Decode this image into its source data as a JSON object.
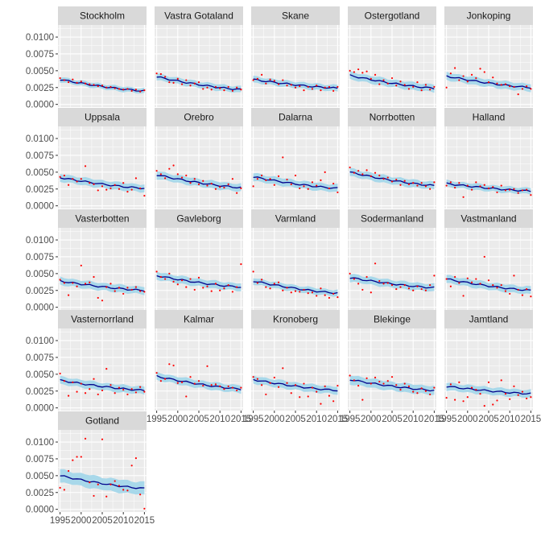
{
  "chart_data": {
    "type": "scatter",
    "title": "",
    "xlabel": "",
    "ylabel": "",
    "xlim": [
      1994.5,
      2015.5
    ],
    "ylim": [
      -0.0004,
      0.0118
    ],
    "xticks": [
      1995,
      2000,
      2005,
      2010,
      2015
    ],
    "xtick_labels": [
      "1995",
      "2000",
      "2005",
      "2010",
      "2015"
    ],
    "yticks": [
      0,
      0.0025,
      0.005,
      0.0075,
      0.01
    ],
    "ytick_labels": [
      "0.0000",
      "0.0025",
      "0.0050",
      "0.0075",
      "0.0100"
    ],
    "colors": {
      "panel": "#ebebeb",
      "grid": "#ffffff",
      "strip": "#d9d9d9",
      "ribbon": "#a8d8ea",
      "line": "#00008b",
      "points": "#ff0000"
    },
    "panels": [
      {
        "name": "Stockholm",
        "fit": [
          0.0037,
          0.002
        ],
        "band": 0.0004,
        "points": [
          0.0039,
          0.0036,
          0.0033,
          0.0037,
          0.0032,
          0.0034,
          0.0031,
          0.003,
          0.0029,
          0.0027,
          0.0028,
          0.0025,
          0.0026,
          0.0024,
          0.0023,
          0.0022,
          0.0023,
          0.002,
          0.0022,
          0.0019,
          0.0021
        ]
      },
      {
        "name": "Vastra Gotaland",
        "fit": [
          0.0041,
          0.0022
        ],
        "band": 0.0005,
        "points": [
          0.0046,
          0.0045,
          0.0041,
          0.0033,
          0.0032,
          0.0038,
          0.003,
          0.0036,
          0.0028,
          0.0031,
          0.0033,
          0.0023,
          0.0025,
          0.0022,
          0.0026,
          0.0024,
          0.0021,
          0.0026,
          0.002,
          0.0025,
          0.0022
        ]
      },
      {
        "name": "Skane",
        "fit": [
          0.0037,
          0.0024
        ],
        "band": 0.0005,
        "points": [
          0.0036,
          0.0038,
          0.0044,
          0.0031,
          0.0037,
          0.0035,
          0.003,
          0.0036,
          0.0028,
          0.0029,
          0.0025,
          0.0027,
          0.0021,
          0.0026,
          0.0023,
          0.0028,
          0.0021,
          0.0025,
          0.0026,
          0.002,
          0.0026
        ]
      },
      {
        "name": "Ostergotland",
        "fit": [
          0.0043,
          0.0024
        ],
        "band": 0.0006,
        "points": [
          0.005,
          0.0048,
          0.0052,
          0.0047,
          0.0049,
          0.0038,
          0.0044,
          0.003,
          0.0036,
          0.0031,
          0.0039,
          0.0028,
          0.0034,
          0.0029,
          0.0023,
          0.0026,
          0.0033,
          0.0021,
          0.0029,
          0.0022,
          0.0026
        ]
      },
      {
        "name": "Jonkoping",
        "fit": [
          0.0042,
          0.0025
        ],
        "band": 0.0006,
        "points": [
          0.0025,
          0.0046,
          0.0054,
          0.0036,
          0.0042,
          0.0034,
          0.0044,
          0.0039,
          0.0053,
          0.0048,
          0.0033,
          0.004,
          0.0031,
          0.0029,
          0.003,
          0.0027,
          0.0026,
          0.0015,
          0.0023,
          0.0027,
          0.0023
        ]
      },
      {
        "name": "Uppsala",
        "fit": [
          0.0042,
          0.0026
        ],
        "band": 0.0006,
        "points": [
          0.0043,
          0.0045,
          0.0031,
          0.004,
          0.0036,
          0.004,
          0.0059,
          0.0034,
          0.0032,
          0.0023,
          0.0029,
          0.0024,
          0.0026,
          0.0031,
          0.0025,
          0.0034,
          0.0021,
          0.0024,
          0.0041,
          0.0026,
          0.0015
        ]
      },
      {
        "name": "Orebro",
        "fit": [
          0.0046,
          0.0027
        ],
        "band": 0.0006,
        "points": [
          0.0052,
          0.0047,
          0.0041,
          0.0055,
          0.006,
          0.0047,
          0.0042,
          0.0045,
          0.0034,
          0.004,
          0.0032,
          0.0037,
          0.003,
          0.0033,
          0.0025,
          0.0028,
          0.0027,
          0.0032,
          0.004,
          0.0019,
          0.0026
        ]
      },
      {
        "name": "Dalarna",
        "fit": [
          0.0043,
          0.0026
        ],
        "band": 0.0006,
        "points": [
          0.0029,
          0.004,
          0.0045,
          0.0038,
          0.004,
          0.0031,
          0.0044,
          0.0072,
          0.0039,
          0.0032,
          0.0045,
          0.0026,
          0.0029,
          0.0025,
          0.0035,
          0.003,
          0.0038,
          0.005,
          0.0026,
          0.0033,
          0.002
        ]
      },
      {
        "name": "Norrbotten",
        "fit": [
          0.005,
          0.003
        ],
        "band": 0.0006,
        "points": [
          0.0057,
          0.0049,
          0.0052,
          0.0047,
          0.0053,
          0.0044,
          0.0049,
          0.0045,
          0.004,
          0.0042,
          0.0036,
          0.0039,
          0.0031,
          0.0037,
          0.0032,
          0.0034,
          0.003,
          0.0034,
          0.0029,
          0.0025,
          0.0035
        ]
      },
      {
        "name": "Halland",
        "fit": [
          0.0033,
          0.0022
        ],
        "band": 0.0005,
        "points": [
          0.003,
          0.0035,
          0.0027,
          0.0034,
          0.0013,
          0.003,
          0.0024,
          0.0035,
          0.0029,
          0.0031,
          0.0026,
          0.0028,
          0.002,
          0.003,
          0.0023,
          0.0024,
          0.0025,
          0.0019,
          0.0023,
          0.0024,
          0.0016
        ]
      },
      {
        "name": "Vasterbotten",
        "fit": [
          0.0039,
          0.0025
        ],
        "band": 0.0006,
        "points": [
          0.0041,
          0.0036,
          0.0018,
          0.0036,
          0.0031,
          0.0062,
          0.0035,
          0.0037,
          0.0045,
          0.0014,
          0.001,
          0.003,
          0.0035,
          0.0024,
          0.0029,
          0.002,
          0.0029,
          0.0026,
          0.003,
          0.0024,
          0.0023
        ]
      },
      {
        "name": "Gavleborg",
        "fit": [
          0.0047,
          0.003
        ],
        "band": 0.0006,
        "points": [
          0.0053,
          0.0045,
          0.0042,
          0.005,
          0.0038,
          0.0034,
          0.004,
          0.003,
          0.0042,
          0.0026,
          0.0044,
          0.0029,
          0.0031,
          0.0024,
          0.0035,
          0.0025,
          0.0028,
          0.0033,
          0.0023,
          0.003,
          0.0064
        ]
      },
      {
        "name": "Varmland",
        "fit": [
          0.0039,
          0.0021
        ],
        "band": 0.0005,
        "points": [
          0.0053,
          0.0036,
          0.0041,
          0.003,
          0.0028,
          0.0035,
          0.0037,
          0.0025,
          0.0029,
          0.0022,
          0.0024,
          0.0023,
          0.0026,
          0.0021,
          0.0022,
          0.0017,
          0.0028,
          0.0018,
          0.0014,
          0.002,
          0.0015
        ]
      },
      {
        "name": "Sodermanland",
        "fit": [
          0.0044,
          0.0029
        ],
        "band": 0.0006,
        "points": [
          0.005,
          0.0042,
          0.0035,
          0.0026,
          0.0045,
          0.0022,
          0.0065,
          0.0039,
          0.0035,
          0.0036,
          0.0033,
          0.0027,
          0.003,
          0.0033,
          0.0028,
          0.0025,
          0.0031,
          0.0027,
          0.0025,
          0.0033,
          0.0047
        ]
      },
      {
        "name": "Vastmanland",
        "fit": [
          0.0042,
          0.0025
        ],
        "band": 0.0006,
        "points": [
          0.0042,
          0.0031,
          0.0045,
          0.0036,
          0.0017,
          0.0043,
          0.0037,
          0.0042,
          0.0035,
          0.0075,
          0.004,
          0.0033,
          0.0029,
          0.0033,
          0.0024,
          0.002,
          0.0047,
          0.0026,
          0.0018,
          0.0027,
          0.0016
        ]
      },
      {
        "name": "Vasternorrland",
        "fit": [
          0.0041,
          0.0026
        ],
        "band": 0.0006,
        "points": [
          0.0051,
          0.004,
          0.0018,
          0.0038,
          0.0024,
          0.0036,
          0.0022,
          0.0028,
          0.0043,
          0.002,
          0.0026,
          0.0058,
          0.0034,
          0.0022,
          0.003,
          0.0027,
          0.002,
          0.0028,
          0.0023,
          0.0031,
          0.0024
        ]
      },
      {
        "name": "Kalmar",
        "fit": [
          0.0047,
          0.0028
        ],
        "band": 0.0006,
        "points": [
          0.0052,
          0.004,
          0.0043,
          0.0065,
          0.0063,
          0.0037,
          0.0038,
          0.0017,
          0.0046,
          0.0036,
          0.004,
          0.0033,
          0.0062,
          0.0034,
          0.0035,
          0.0032,
          0.0028,
          0.0032,
          0.003,
          0.0026,
          0.003
        ]
      },
      {
        "name": "Kronoberg",
        "fit": [
          0.0042,
          0.0026
        ],
        "band": 0.0006,
        "points": [
          0.0046,
          0.0043,
          0.0034,
          0.002,
          0.0037,
          0.0045,
          0.0031,
          0.0059,
          0.0037,
          0.0022,
          0.0034,
          0.0016,
          0.0036,
          0.0017,
          0.003,
          0.0024,
          0.0006,
          0.0032,
          0.0018,
          0.001,
          0.0033
        ]
      },
      {
        "name": "Blekinge",
        "fit": [
          0.0042,
          0.0026
        ],
        "band": 0.0007,
        "points": [
          0.0048,
          0.0041,
          0.0033,
          0.0012,
          0.0044,
          0.0036,
          0.0045,
          0.0039,
          0.0036,
          0.004,
          0.0046,
          0.0034,
          0.0027,
          0.0036,
          0.0032,
          0.0024,
          0.0022,
          0.0029,
          0.0025,
          0.002,
          0.003
        ]
      },
      {
        "name": "Jamtland",
        "fit": [
          0.0032,
          0.0021
        ],
        "band": 0.0006,
        "points": [
          0.0015,
          0.0035,
          0.0012,
          0.0038,
          0.001,
          0.0016,
          0.003,
          0.0027,
          0.0021,
          0.0003,
          0.0038,
          0.0005,
          0.0011,
          0.0041,
          0.0021,
          0.0013,
          0.0032,
          0.0019,
          0.0024,
          0.0014,
          0.0016
        ]
      },
      {
        "name": "Gotland",
        "fit": [
          0.005,
          0.0031
        ],
        "band": 0.001,
        "points": [
          0.0032,
          0.0029,
          0.0057,
          0.0073,
          0.0078,
          0.0078,
          0.0105,
          0.004,
          0.002,
          0.0037,
          0.0104,
          0.0019,
          0.0037,
          0.0042,
          0.0035,
          0.0029,
          0.0028,
          0.0065,
          0.0076,
          0.0022,
          0.0001
        ]
      }
    ]
  }
}
